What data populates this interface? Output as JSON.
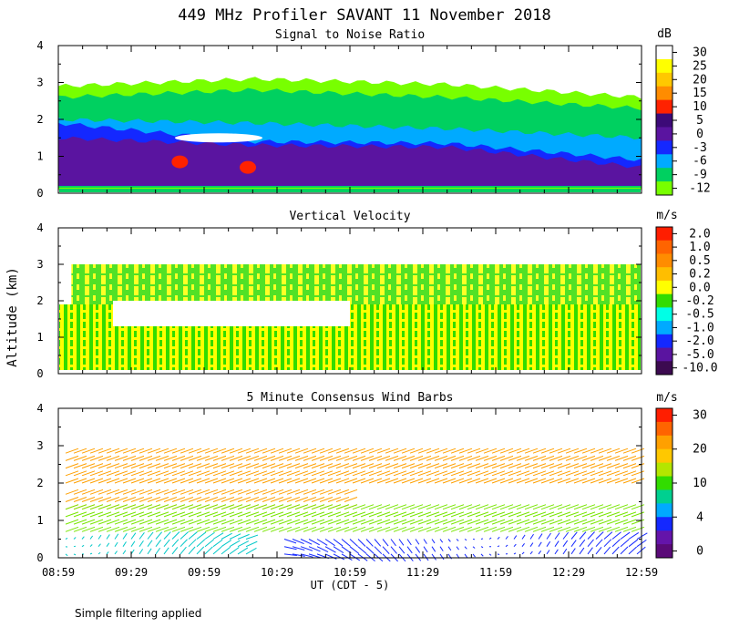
{
  "title": "449 MHz Profiler SAVANT 11 November 2018",
  "footer_note": "Simple filtering applied",
  "chart_data": [
    {
      "type": "heatmap",
      "title": "Signal to Noise Ratio",
      "ylabel": "Altitude (km)",
      "ylim": [
        0,
        4
      ],
      "y_ticks": [
        "0",
        "1",
        "2",
        "3",
        "4"
      ],
      "colorbar": {
        "unit": "dB",
        "labels": [
          "30",
          "25",
          "20",
          "15",
          "10",
          "5",
          "0",
          "-3",
          "-6",
          "-9",
          "-12"
        ],
        "colors": [
          "#ffffff",
          "#ffff00",
          "#ffc800",
          "#ff8c00",
          "#ff2200",
          "#3c0a78",
          "#5a14a0",
          "#1428ff",
          "#00aaff",
          "#00d060",
          "#78ff00"
        ]
      },
      "layers": [
        {
          "name": "snr-low-noise",
          "level": "-12",
          "color": "#78ff00",
          "x_range": [
            "08:59",
            "12:59"
          ],
          "top_km": [
            2.9,
            3.1,
            2.95,
            2.6
          ],
          "bottom_km": 0.1
        },
        {
          "name": "snr-green",
          "level": "-9",
          "color": "#00d060",
          "x_range": [
            "08:59",
            "12:59"
          ],
          "top_km": [
            2.6,
            2.8,
            2.6,
            2.3
          ],
          "bottom_km": 0.15
        },
        {
          "name": "snr-cyan",
          "level": "-6",
          "color": "#00aaff",
          "x_range": [
            "08:59",
            "12:59"
          ],
          "top_km": [
            2.0,
            1.9,
            1.75,
            1.5
          ],
          "bottom_km": 0.2
        },
        {
          "name": "snr-blue",
          "level": "-3",
          "color": "#1428ff",
          "x_range": [
            "08:59",
            "12:59"
          ],
          "top_km": [
            1.9,
            1.4,
            1.35,
            0.9
          ],
          "bottom_km": 0.2
        },
        {
          "name": "snr-purple",
          "level": "0",
          "color": "#5a14a0",
          "x_range": [
            "08:59",
            "12:59"
          ],
          "top_km": [
            1.5,
            1.3,
            1.25,
            0.7
          ],
          "bottom_km": 0.2
        }
      ],
      "annotations": [
        {
          "text": "",
          "level": "30",
          "color": "#ffffff",
          "x": "10:05",
          "y_km": 1.5
        },
        {
          "text": "",
          "level": "10",
          "color": "#ff2200",
          "x": "09:49",
          "y_km": 0.85
        },
        {
          "text": "",
          "level": "10",
          "color": "#ff2200",
          "x": "10:17",
          "y_km": 0.7
        }
      ]
    },
    {
      "type": "heatmap",
      "title": "Vertical Velocity",
      "ylabel": "Altitude (km)",
      "ylim": [
        0,
        4
      ],
      "y_ticks": [
        "0",
        "1",
        "2",
        "3",
        "4"
      ],
      "colorbar": {
        "unit": "m/s",
        "labels": [
          "2.0",
          "1.0",
          "0.5",
          "0.2",
          "0.0",
          "-0.2",
          "-0.5",
          "-1.0",
          "-2.0",
          "-5.0",
          "-10.0"
        ],
        "colors": [
          "#ff1e00",
          "#ff6400",
          "#ff8c00",
          "#ffbe00",
          "#ffff00",
          "#32dc00",
          "#00ffe6",
          "#00aaff",
          "#1428ff",
          "#5a14a0",
          "#3c0a50"
        ]
      },
      "regions": [
        {
          "name": "vv-low-layer",
          "x_range": [
            "08:59",
            "12:59"
          ],
          "y_km": [
            0.1,
            1.9
          ],
          "value": "0.0 / -0.2"
        },
        {
          "name": "vv-upper-layer",
          "x_range": [
            "09:04",
            "12:59"
          ],
          "y_km": [
            1.9,
            3.0
          ],
          "value": "0.0 / -0.2"
        }
      ]
    },
    {
      "type": "scatter",
      "title": "5 Minute Consensus Wind Barbs",
      "xlabel": "UT (CDT - 5)",
      "ylabel": "Altitude (km)",
      "ylim": [
        0,
        4
      ],
      "y_ticks": [
        "0",
        "1",
        "2",
        "3",
        "4"
      ],
      "x_ticks": [
        "08:59",
        "09:29",
        "09:59",
        "10:29",
        "10:59",
        "11:29",
        "11:59",
        "12:29",
        "12:59"
      ],
      "colorbar": {
        "unit": "m/s",
        "labels": [
          "30",
          "20",
          "10",
          "4",
          "0"
        ],
        "colors": [
          "#ff1e00",
          "#ff6400",
          "#ffa000",
          "#ffc800",
          "#b4e600",
          "#32dc00",
          "#00d090",
          "#00aaff",
          "#1428ff",
          "#6414aa",
          "#5a0a78"
        ]
      },
      "barb_groups": [
        {
          "name": "upper-orange",
          "speed_ms": 20,
          "x_range": [
            "08:59",
            "12:59"
          ],
          "y_km": [
            1.9,
            2.9
          ]
        },
        {
          "name": "mid-orange",
          "speed_ms": 18,
          "x_range": [
            "08:59",
            "10:59"
          ],
          "y_km": [
            1.2,
            1.9
          ]
        },
        {
          "name": "green-jet",
          "speed_ms": 11,
          "x_range": [
            "08:59",
            "12:59"
          ],
          "y_km": [
            0.6,
            1.3
          ]
        },
        {
          "name": "low-cyan",
          "speed_ms": 6,
          "x_range": [
            "08:59",
            "10:20"
          ],
          "y_km": [
            0.0,
            0.6
          ]
        },
        {
          "name": "low-blue",
          "speed_ms": 3,
          "x_range": [
            "10:29",
            "12:59"
          ],
          "y_km": [
            0.0,
            0.7
          ]
        }
      ]
    }
  ]
}
